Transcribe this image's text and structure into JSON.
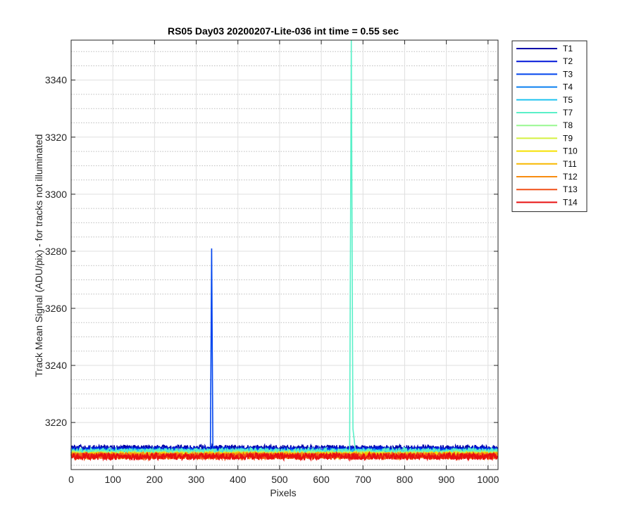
{
  "chart_data": {
    "type": "line",
    "title": "RS05 Day03 20200207-Lite-036 int time = 0.55 sec",
    "xlabel": "Pixels",
    "ylabel": "Track Mean Signal (ADU/pix) - for tracks not illuminated",
    "xlim": [
      0,
      1024
    ],
    "ylim": [
      3203.5,
      3354
    ],
    "xticks": [
      0,
      100,
      200,
      300,
      400,
      500,
      600,
      700,
      800,
      900,
      1000
    ],
    "yticks": [
      3220,
      3240,
      3260,
      3280,
      3300,
      3320,
      3340
    ],
    "grid": true,
    "minor_grid_y": true,
    "legend_position": "outside-top-right",
    "series": [
      {
        "name": "T1",
        "color": "#0000a8",
        "baseline": 3211.0,
        "noise": 1.1,
        "peaks": []
      },
      {
        "name": "T2",
        "color": "#0016d8",
        "baseline": 3210.5,
        "noise": 1.1,
        "peaks": []
      },
      {
        "name": "T3",
        "color": "#0044ee",
        "baseline": 3210.0,
        "noise": 1.1,
        "peaks": [
          {
            "x": 337,
            "y": 3281,
            "width": 2
          }
        ]
      },
      {
        "name": "T4",
        "color": "#0a80f0",
        "baseline": 3209.8,
        "noise": 1.0,
        "peaks": []
      },
      {
        "name": "T5",
        "color": "#22c4f0",
        "baseline": 3209.7,
        "noise": 1.0,
        "peaks": []
      },
      {
        "name": "T7",
        "color": "#5af0c8",
        "baseline": 3210.0,
        "noise": 1.0,
        "peaks": [
          {
            "x": 672,
            "y": 3354,
            "width": 3
          },
          {
            "x": 675,
            "y": 3219,
            "width": 6
          }
        ]
      },
      {
        "name": "T8",
        "color": "#98f890",
        "baseline": 3209.0,
        "noise": 1.1,
        "peaks": []
      },
      {
        "name": "T9",
        "color": "#d4f040",
        "baseline": 3208.8,
        "noise": 1.1,
        "peaks": []
      },
      {
        "name": "T10",
        "color": "#f6e000",
        "baseline": 3208.6,
        "noise": 1.1,
        "peaks": []
      },
      {
        "name": "T11",
        "color": "#f8b800",
        "baseline": 3208.5,
        "noise": 1.1,
        "peaks": []
      },
      {
        "name": "T12",
        "color": "#f88c10",
        "baseline": 3208.3,
        "noise": 1.1,
        "peaks": []
      },
      {
        "name": "T13",
        "color": "#f05018",
        "baseline": 3208.2,
        "noise": 1.2,
        "peaks": []
      },
      {
        "name": "T14",
        "color": "#e81010",
        "baseline": 3208.1,
        "noise": 1.2,
        "peaks": []
      }
    ]
  }
}
